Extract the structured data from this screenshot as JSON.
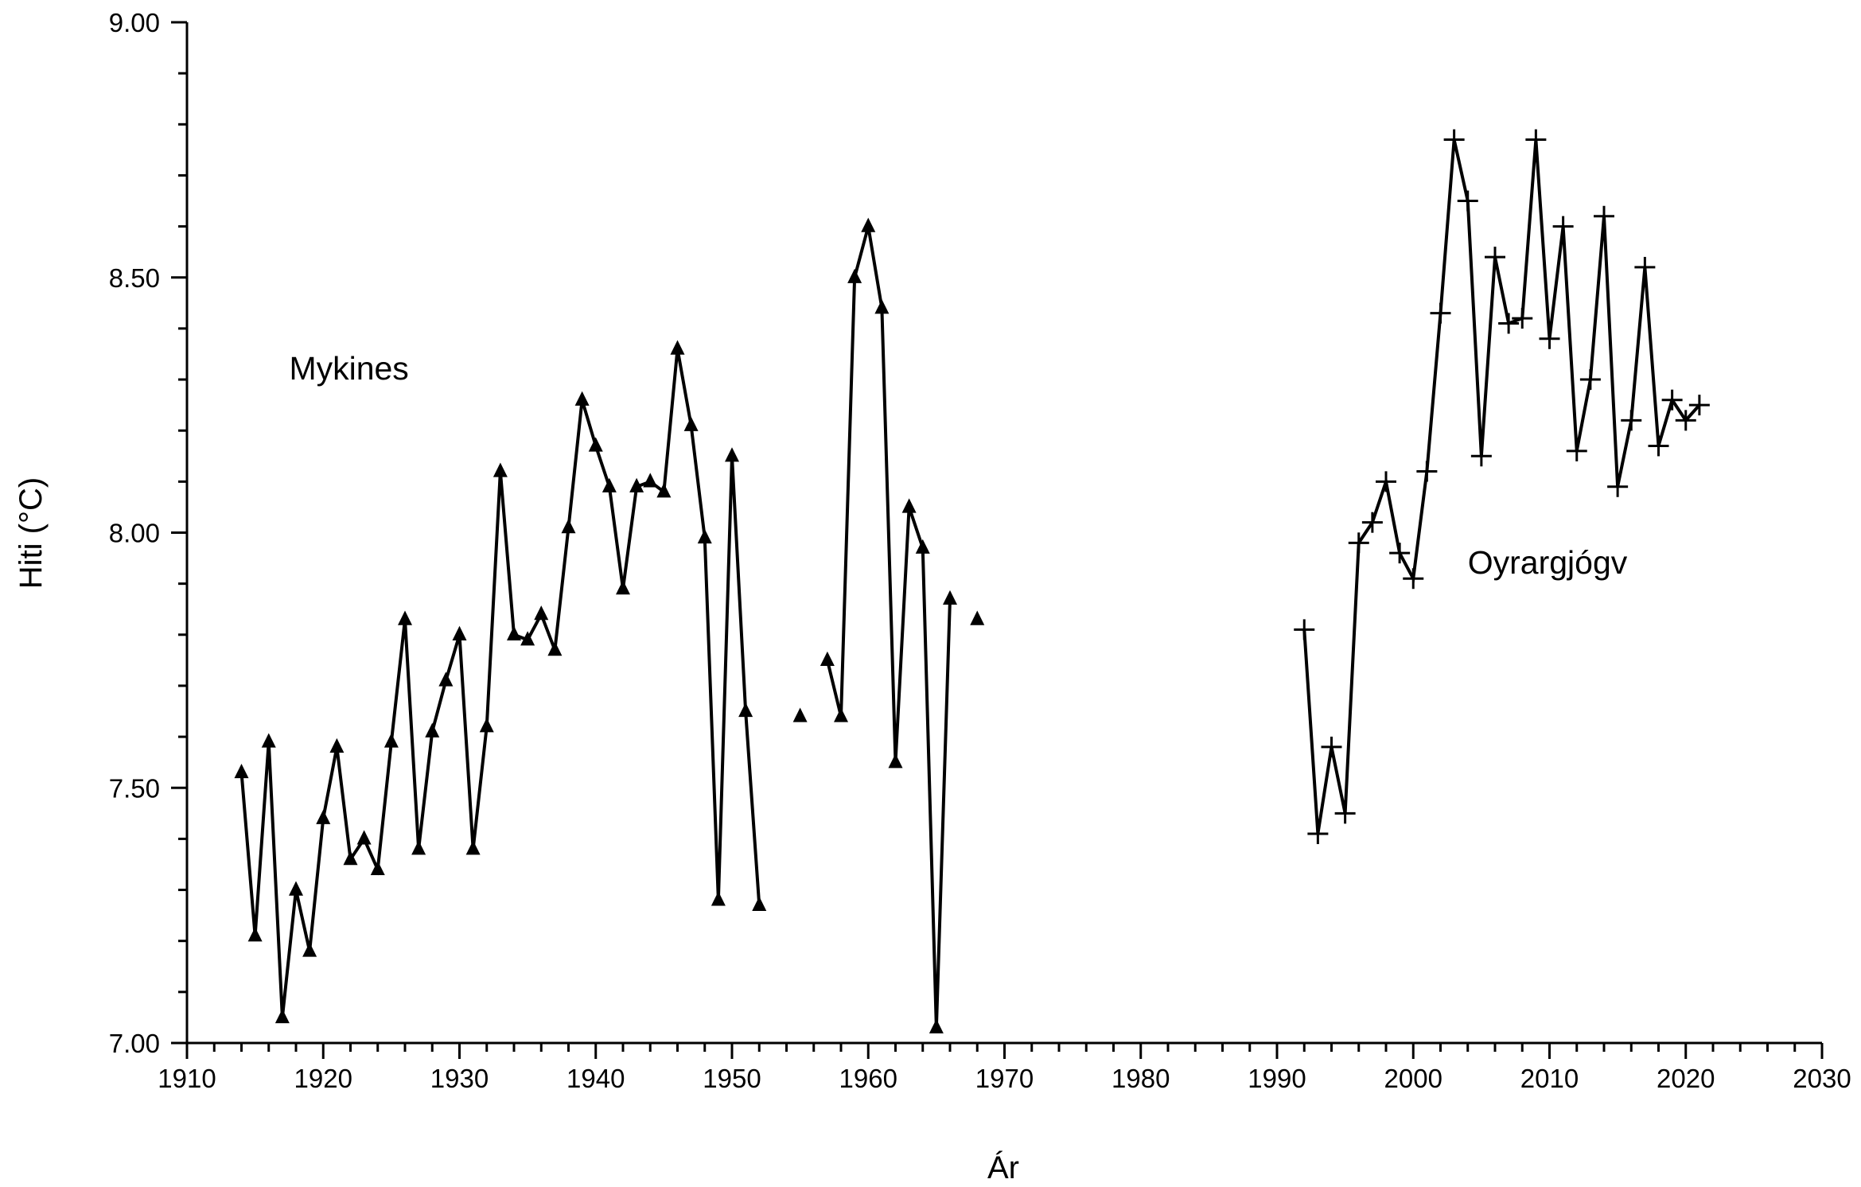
{
  "chart_data": {
    "type": "line",
    "xlabel": "Ár",
    "ylabel": "Hiti (°C)",
    "xlim": [
      1910,
      2030
    ],
    "ylim": [
      7.0,
      9.0
    ],
    "x_ticks": [
      "1910",
      "1920",
      "1930",
      "1940",
      "1950",
      "1960",
      "1970",
      "1980",
      "1990",
      "2000",
      "2010",
      "2020",
      "2030"
    ],
    "y_ticks": [
      "7.00",
      "7.50",
      "8.00",
      "8.50",
      "9.00"
    ],
    "grid": false,
    "legend": "none",
    "annotations": [
      {
        "text": "Mykines",
        "x": 1917.5,
        "y": 8.3
      },
      {
        "text": "Oyrargjógv",
        "x": 2004,
        "y": 7.92
      }
    ],
    "series": [
      {
        "marker": "triangle",
        "x": [
          1914,
          1915,
          1916,
          1917,
          1918,
          1919,
          1920,
          1921,
          1922,
          1923,
          1924,
          1925,
          1926,
          1927,
          1928,
          1929,
          1930,
          1931,
          1932,
          1933,
          1934,
          1935,
          1936,
          1937,
          1938,
          1939,
          1940,
          1941,
          1942,
          1943,
          1944,
          1945,
          1946,
          1947,
          1948,
          1949,
          1950,
          1951,
          1952,
          1953,
          1954,
          1955,
          1956,
          1957,
          1958,
          1959,
          1960,
          1961,
          1962,
          1963,
          1964,
          1965,
          1966,
          1967,
          1968
        ],
        "y": [
          7.53,
          7.21,
          7.59,
          7.05,
          7.3,
          7.18,
          7.44,
          7.58,
          7.36,
          7.4,
          7.34,
          7.59,
          7.83,
          7.38,
          7.61,
          7.71,
          7.8,
          7.38,
          7.62,
          8.12,
          7.8,
          7.79,
          7.84,
          7.77,
          8.01,
          8.26,
          8.17,
          8.09,
          7.89,
          8.09,
          8.1,
          8.08,
          8.36,
          8.21,
          7.99,
          7.28,
          8.15,
          7.65,
          7.27,
          null,
          null,
          7.64,
          null,
          7.75,
          7.64,
          8.5,
          8.6,
          8.44,
          7.55,
          8.05,
          7.97,
          7.03,
          7.87,
          null,
          7.83
        ]
      },
      {
        "marker": "plus",
        "x": [
          1992,
          1993,
          1994,
          1995,
          1996,
          1997,
          1998,
          1999,
          2000,
          2001,
          2002,
          2003,
          2004,
          2005,
          2006,
          2007,
          2008,
          2009,
          2010,
          2011,
          2012,
          2013,
          2014,
          2015,
          2016,
          2017,
          2018,
          2019,
          2020,
          2021
        ],
        "y": [
          7.81,
          7.41,
          7.58,
          7.45,
          7.98,
          8.02,
          8.1,
          7.96,
          7.91,
          8.12,
          8.43,
          8.77,
          8.65,
          8.15,
          8.54,
          8.41,
          8.42,
          8.77,
          8.38,
          8.6,
          8.16,
          8.3,
          8.62,
          8.09,
          8.22,
          8.52,
          8.17,
          8.26,
          8.22,
          8.25
        ]
      }
    ]
  }
}
